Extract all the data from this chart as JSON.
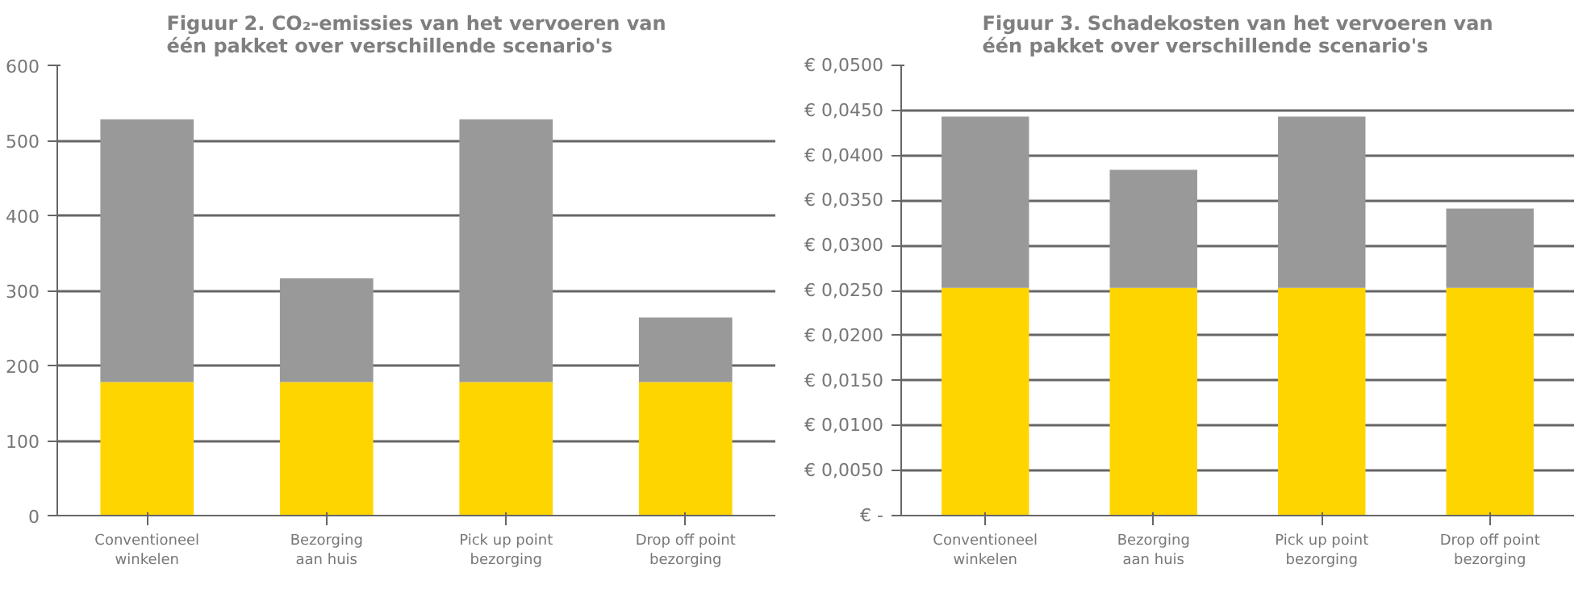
{
  "chart_data": [
    {
      "type": "bar",
      "title": "Figuur 2. CO₂-emissies van het vervoeren van\néén pakket over verschillende scenario's",
      "categories": [
        "Conventioneel\nwinkelen",
        "Bezorging\naan huis",
        "Pick up point\nbezorging",
        "Drop off point\nbezorging"
      ],
      "stacked": true,
      "series": [
        {
          "color": "#ffd500",
          "values": [
            178,
            178,
            178,
            178
          ]
        },
        {
          "color": "#999999",
          "values": [
            350,
            138,
            350,
            86
          ]
        }
      ],
      "ylim": [
        0,
        600
      ],
      "yticks": [
        0,
        100,
        200,
        300,
        400,
        500,
        600
      ],
      "grid": "y"
    },
    {
      "type": "bar",
      "title": "Figuur 3. Schadekosten van het vervoeren van\néén pakket over verschillende scenario's",
      "categories": [
        "Conventioneel\nwinkelen",
        "Bezorging\naan huis",
        "Pick up point\nbezorging",
        "Drop off point\nbezorging"
      ],
      "stacked": true,
      "series": [
        {
          "color": "#ffd500",
          "values": [
            0.0253,
            0.0253,
            0.0253,
            0.0253
          ]
        },
        {
          "color": "#999999",
          "values": [
            0.019,
            0.0131,
            0.019,
            0.0088
          ]
        }
      ],
      "ylim": [
        0,
        0.05
      ],
      "yticks": [
        {
          "value": 0,
          "label": "€ -"
        },
        {
          "value": 0.005,
          "label": "€ 0,0050"
        },
        {
          "value": 0.01,
          "label": "€ 0,0100"
        },
        {
          "value": 0.015,
          "label": "€ 0,0150"
        },
        {
          "value": 0.02,
          "label": "€ 0,0200"
        },
        {
          "value": 0.025,
          "label": "€ 0,0250"
        },
        {
          "value": 0.03,
          "label": "€ 0,0300"
        },
        {
          "value": 0.035,
          "label": "€ 0,0350"
        },
        {
          "value": 0.04,
          "label": "€ 0,0400"
        },
        {
          "value": 0.045,
          "label": "€ 0,0450"
        },
        {
          "value": 0.05,
          "label": "€ 0,0500"
        }
      ],
      "grid": "y"
    }
  ]
}
